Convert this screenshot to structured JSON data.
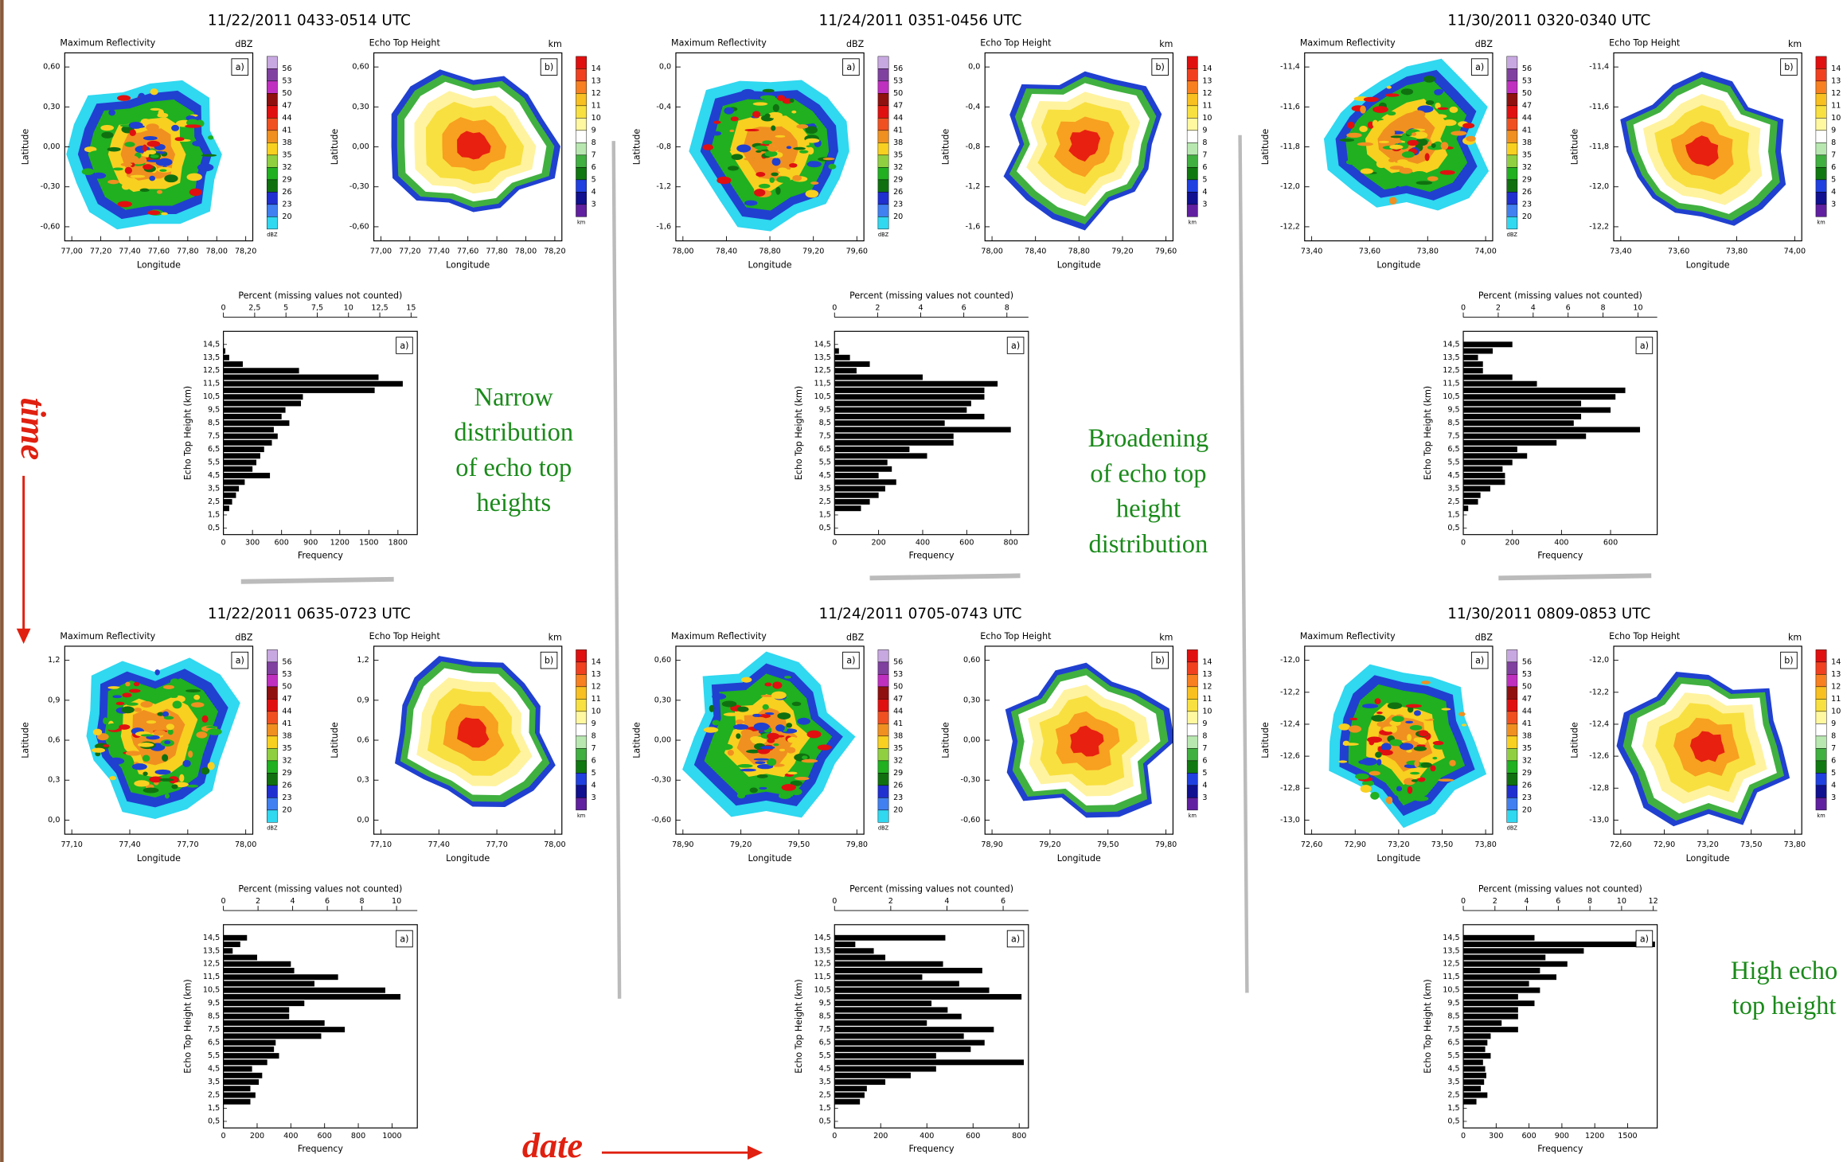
{
  "panels": [
    {
      "title": "11/22/2011 0433-0514 UTC",
      "lat_ticks": [
        "0,60",
        "0,30",
        "0,00",
        "-0,30",
        "-0,60"
      ],
      "lon_ticks": [
        "77,00",
        "77,20",
        "77,40",
        "77,60",
        "77,80",
        "78,00",
        "78,20"
      ]
    },
    {
      "title": "11/24/2011 0351-0456 UTC",
      "lat_ticks": [
        "0,0",
        "-0,4",
        "-0,8",
        "-1,2",
        "-1,6"
      ],
      "lon_ticks": [
        "78,00",
        "78,40",
        "78,80",
        "79,20",
        "79,60"
      ]
    },
    {
      "title": "11/30/2011 0320-0340 UTC",
      "lat_ticks": [
        "-11,4",
        "-11,6",
        "-11,8",
        "-12,0",
        "-12,2"
      ],
      "lon_ticks": [
        "73,40",
        "73,60",
        "73,80",
        "74,00"
      ]
    },
    {
      "title": "11/22/2011 0635-0723 UTC",
      "lat_ticks": [
        "1,2",
        "0,9",
        "0,6",
        "0,3",
        "0,0"
      ],
      "lon_ticks": [
        "77,10",
        "77,40",
        "77,70",
        "78,00"
      ]
    },
    {
      "title": "11/24/2011 0705-0743 UTC",
      "lat_ticks": [
        "0,60",
        "0,30",
        "0,00",
        "-0,30",
        "-0,60"
      ],
      "lon_ticks": [
        "78,90",
        "79,20",
        "79,50",
        "79,80"
      ]
    },
    {
      "title": "11/30/2011 0809-0853 UTC",
      "lat_ticks": [
        "-12,0",
        "-12,2",
        "-12,4",
        "-12,6",
        "-12,8",
        "-13,0"
      ],
      "lon_ticks": [
        "72,60",
        "72,90",
        "73,20",
        "73,50",
        "73,80"
      ]
    }
  ],
  "maps": [
    {
      "title": "Maximum Reflectivity",
      "unit": "dBZ",
      "label": "a)",
      "levels": [
        56,
        53,
        50,
        47,
        44,
        41,
        38,
        35,
        32,
        29,
        26,
        23,
        20
      ]
    },
    {
      "title": "Echo Top Height",
      "unit": "km",
      "label": "b)",
      "levels": [
        14,
        13,
        12,
        11,
        10,
        9,
        8,
        7,
        6,
        5,
        4,
        3
      ]
    }
  ],
  "map_axes": {
    "xlabel": "Longitude",
    "ylabel": "Latitude"
  },
  "notes": [
    [
      "Narrow",
      "distribution",
      "of echo top",
      "heights"
    ],
    [
      "Broadening",
      "of  echo top",
      "height",
      "distribution"
    ],
    [
      "High echo",
      "top height"
    ]
  ],
  "arrows": {
    "time": "time",
    "date": "date"
  },
  "chart_data": [
    {
      "type": "bar",
      "horizontal": true,
      "label": "a)",
      "top_label": "Percent (missing values not counted)",
      "xlabel": "Frequency",
      "ylabel": "Echo Top Height (km)",
      "color": "#000000",
      "categories": [
        "0,5",
        null,
        "1,5",
        null,
        "2,5",
        null,
        "3,5",
        null,
        "4,5",
        null,
        "5,5",
        null,
        "6,5",
        null,
        "7,5",
        null,
        "8,5",
        null,
        "9,5",
        null,
        "10,5",
        null,
        "11,5",
        null,
        "12,5",
        null,
        "13,5",
        null,
        "14,5"
      ],
      "values": [
        0,
        0,
        0,
        60,
        90,
        130,
        160,
        220,
        480,
        300,
        340,
        380,
        420,
        500,
        560,
        520,
        680,
        600,
        640,
        800,
        820,
        1560,
        1850,
        1600,
        780,
        200,
        60,
        20,
        0
      ],
      "xlim": [
        0,
        2000
      ],
      "xticks": [
        0,
        300,
        600,
        900,
        1200,
        1500,
        1800
      ],
      "x2lim": [
        0,
        15.5
      ],
      "x2ticks": [
        0,
        {
          "value": 2.5,
          "label": "2,5"
        },
        5,
        {
          "value": 7.5,
          "label": "7,5"
        },
        10,
        {
          "value": 12.5,
          "label": "12,5"
        },
        15
      ]
    },
    {
      "type": "bar",
      "horizontal": true,
      "label": "a)",
      "top_label": "Percent (missing values not counted)",
      "xlabel": "Frequency",
      "ylabel": "Echo Top Height (km)",
      "color": "#000000",
      "categories": [
        "0,5",
        null,
        "1,5",
        null,
        "2,5",
        null,
        "3,5",
        null,
        "4,5",
        null,
        "5,5",
        null,
        "6,5",
        null,
        "7,5",
        null,
        "8,5",
        null,
        "9,5",
        null,
        "10,5",
        null,
        "11,5",
        null,
        "12,5",
        null,
        "13,5",
        null,
        "14,5"
      ],
      "values": [
        0,
        0,
        0,
        120,
        160,
        200,
        230,
        280,
        200,
        260,
        240,
        420,
        340,
        540,
        540,
        800,
        500,
        680,
        600,
        620,
        680,
        680,
        740,
        400,
        100,
        160,
        70,
        20,
        0
      ],
      "xlim": [
        0,
        880
      ],
      "xticks": [
        0,
        200,
        400,
        600,
        800
      ],
      "x2lim": [
        0,
        9.0
      ],
      "x2ticks": [
        0,
        2,
        4,
        6,
        8
      ]
    },
    {
      "type": "bar",
      "horizontal": true,
      "label": "a)",
      "top_label": "Percent (missing values not counted)",
      "xlabel": "Frequency",
      "ylabel": "Echo Top Height (km)",
      "color": "#000000",
      "categories": [
        "0,5",
        null,
        "1,5",
        null,
        "2,5",
        null,
        "3,5",
        null,
        "4,5",
        null,
        "5,5",
        null,
        "6,5",
        null,
        "7,5",
        null,
        "8,5",
        null,
        "9,5",
        null,
        "10,5",
        null,
        "11,5",
        null,
        "12,5",
        null,
        "13,5",
        null,
        "14,5"
      ],
      "values": [
        0,
        0,
        0,
        20,
        60,
        70,
        110,
        170,
        170,
        160,
        200,
        260,
        220,
        380,
        500,
        720,
        450,
        480,
        600,
        480,
        620,
        660,
        300,
        200,
        80,
        80,
        60,
        120,
        200
      ],
      "xlim": [
        0,
        790
      ],
      "xticks": [
        0,
        200,
        400,
        600
      ],
      "x2lim": [
        0,
        11.1
      ],
      "x2ticks": [
        0,
        2,
        4,
        6,
        8,
        10
      ]
    },
    {
      "type": "bar",
      "horizontal": true,
      "label": "a)",
      "top_label": "Percent (missing values not counted)",
      "xlabel": "Frequency",
      "ylabel": "Echo Top Height (km)",
      "color": "#000000",
      "categories": [
        "0,5",
        null,
        "1,5",
        null,
        "2,5",
        null,
        "3,5",
        null,
        "4,5",
        null,
        "5,5",
        null,
        "6,5",
        null,
        "7,5",
        null,
        "8,5",
        null,
        "9,5",
        null,
        "10,5",
        null,
        "11,5",
        null,
        "12,5",
        null,
        "13,5",
        null,
        "14,5"
      ],
      "values": [
        0,
        0,
        0,
        160,
        190,
        160,
        210,
        230,
        170,
        260,
        330,
        300,
        310,
        580,
        720,
        600,
        390,
        390,
        480,
        1050,
        960,
        540,
        680,
        420,
        400,
        200,
        55,
        100,
        140
      ],
      "xlim": [
        0,
        1150
      ],
      "xticks": [
        0,
        200,
        400,
        600,
        800,
        1000
      ],
      "x2lim": [
        0,
        11.2
      ],
      "x2ticks": [
        0,
        2,
        4,
        6,
        8,
        10
      ]
    },
    {
      "type": "bar",
      "horizontal": true,
      "label": "a)",
      "top_label": "Percent (missing values not counted)",
      "xlabel": "Frequency",
      "ylabel": "Echo Top Height (km)",
      "color": "#000000",
      "categories": [
        "0,5",
        null,
        "1,5",
        null,
        "2,5",
        null,
        "3,5",
        null,
        "4,5",
        null,
        "5,5",
        null,
        "6,5",
        null,
        "7,5",
        null,
        "8,5",
        null,
        "9,5",
        null,
        "10,5",
        null,
        "11,5",
        null,
        "12,5",
        null,
        "13,5",
        null,
        "14,5"
      ],
      "values": [
        0,
        0,
        0,
        110,
        130,
        140,
        220,
        330,
        440,
        820,
        440,
        590,
        650,
        560,
        690,
        400,
        550,
        490,
        420,
        810,
        670,
        540,
        380,
        640,
        470,
        220,
        170,
        90,
        480
      ],
      "xlim": [
        0,
        840
      ],
      "xticks": [
        0,
        200,
        400,
        600,
        800
      ],
      "x2lim": [
        0,
        6.9
      ],
      "x2ticks": [
        0,
        2,
        4,
        6
      ]
    },
    {
      "type": "bar",
      "horizontal": true,
      "label": "a)",
      "top_label": "Percent (missing values not counted)",
      "xlabel": "Frequency",
      "ylabel": "Echo Top Height (km)",
      "color": "#000000",
      "categories": [
        "0,5",
        null,
        "1,5",
        null,
        "2,5",
        null,
        "3,5",
        null,
        "4,5",
        null,
        "5,5",
        null,
        "6,5",
        null,
        "7,5",
        null,
        "8,5",
        null,
        "9,5",
        null,
        "10,5",
        null,
        "11,5",
        null,
        "12,5",
        null,
        "13,5",
        null,
        "14,5"
      ],
      "values": [
        0,
        0,
        0,
        120,
        220,
        160,
        190,
        210,
        200,
        180,
        250,
        200,
        220,
        250,
        500,
        350,
        500,
        500,
        650,
        500,
        700,
        600,
        850,
        700,
        950,
        750,
        1100,
        1750,
        650
      ],
      "xlim": [
        0,
        1770
      ],
      "xticks": [
        0,
        300,
        600,
        900,
        1200,
        1500
      ],
      "x2lim": [
        0,
        12.25
      ],
      "x2ticks": [
        0,
        2,
        4,
        6,
        8,
        10,
        12
      ]
    }
  ]
}
